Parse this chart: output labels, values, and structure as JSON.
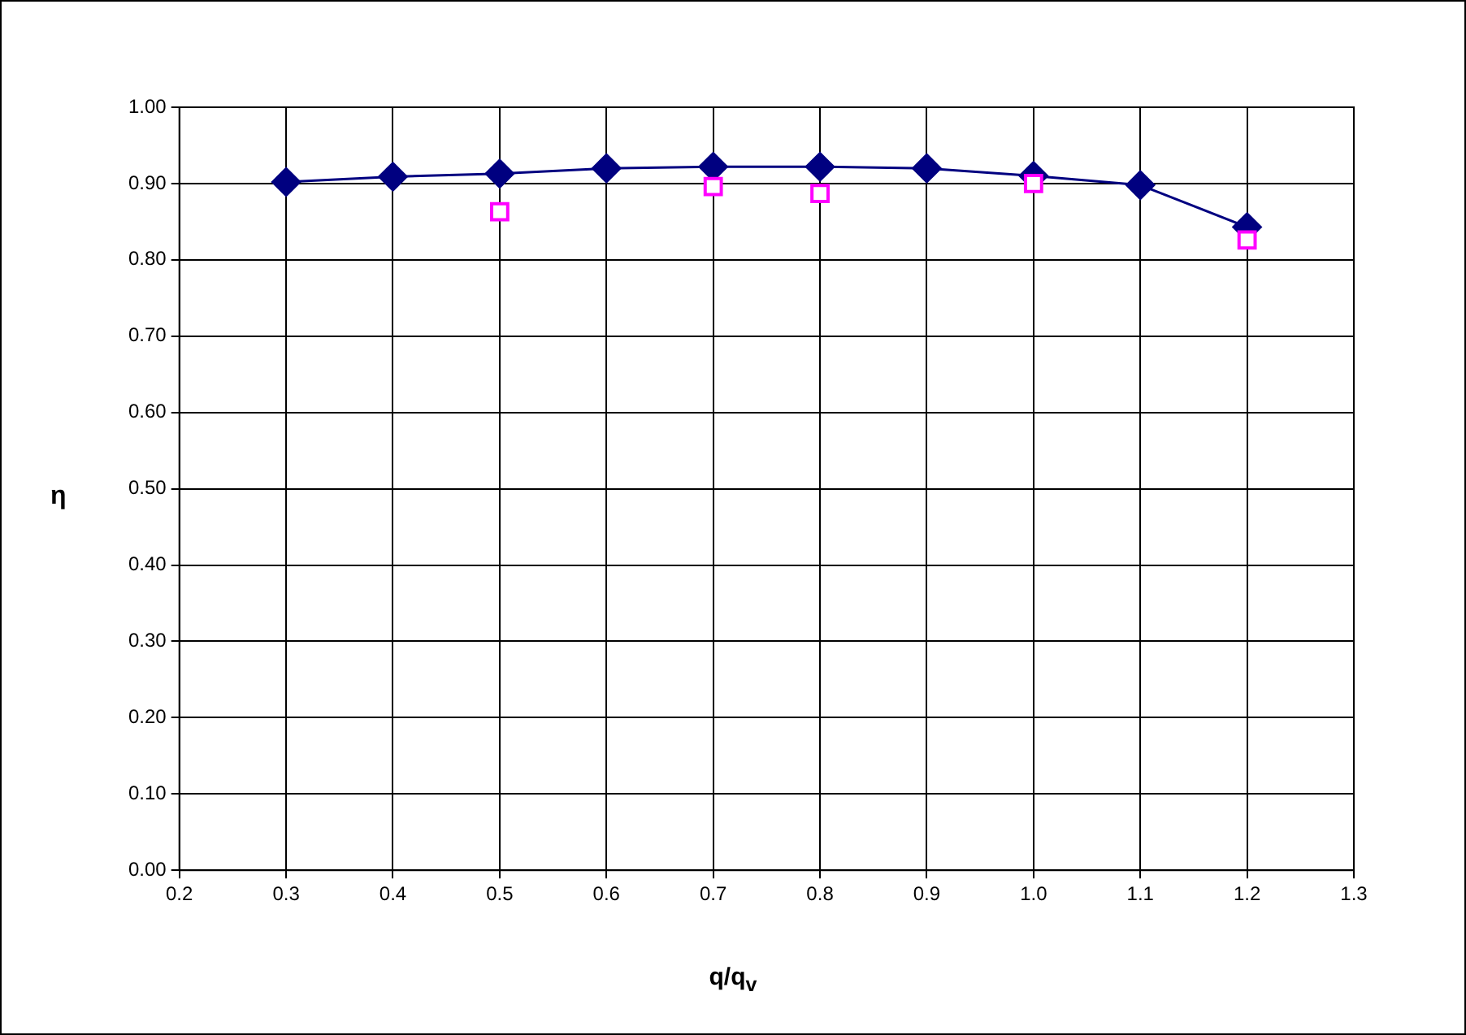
{
  "chart_data": {
    "type": "line",
    "xlabel": "q/q$_{v}$",
    "ylabel": "η",
    "x": [
      0.3,
      0.4,
      0.5,
      0.6,
      0.7,
      0.8,
      0.9,
      1.0,
      1.1,
      1.2
    ],
    "series": [
      {
        "type": "line",
        "color": "#000080",
        "marker": "diamond",
        "values": [
          0.902,
          0.909,
          0.913,
          0.92,
          0.922,
          0.922,
          0.92,
          0.91,
          0.898,
          0.843
        ]
      },
      {
        "type": "scatter",
        "color": "#ff00ff",
        "marker": "square",
        "values": [
          null,
          null,
          0.863,
          null,
          0.896,
          0.887,
          null,
          0.9,
          null,
          0.826
        ]
      }
    ],
    "xlim": [
      0.2,
      1.3
    ],
    "xticks": [
      0.2,
      0.3,
      0.4,
      0.5,
      0.6,
      0.7,
      0.8,
      0.9,
      {
        "value": 1.0,
        "label": "1.0"
      },
      1.1,
      1.2,
      1.3
    ],
    "ylim": [
      0,
      1
    ],
    "yticks": [
      {
        "value": 0,
        "label": "0.00"
      },
      {
        "value": 0.1,
        "label": "0.10"
      },
      {
        "value": 0.2,
        "label": "0.20"
      },
      {
        "value": 0.3,
        "label": "0.30"
      },
      {
        "value": 0.4,
        "label": "0.40"
      },
      {
        "value": 0.5,
        "label": "0.50"
      },
      {
        "value": 0.6,
        "label": "0.60"
      },
      {
        "value": 0.7,
        "label": "0.70"
      },
      {
        "value": 0.8,
        "label": "0.80"
      },
      {
        "value": 0.9,
        "label": "0.90"
      },
      {
        "value": 1,
        "label": "1.00"
      }
    ],
    "grid": true
  }
}
